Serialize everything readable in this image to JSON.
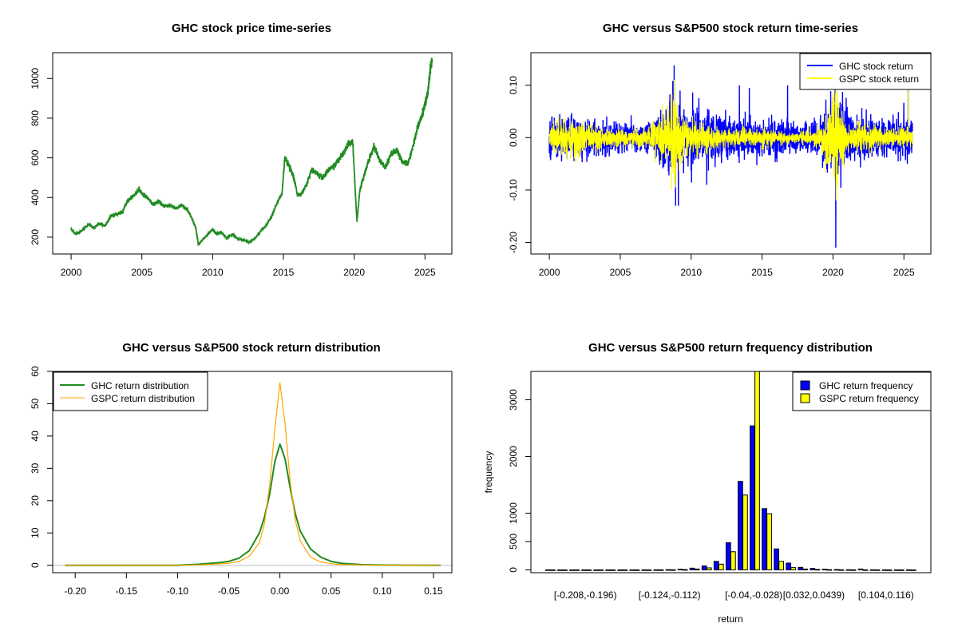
{
  "colors": {
    "ghc_price": "#228B22",
    "ghc_return": "#0000FF",
    "gspc_return": "#FFFF00",
    "ghc_density": "#228B22",
    "gspc_density": "#FFA500",
    "zero_line": "#BEBEBE",
    "axis": "#000000"
  },
  "chart_data": [
    {
      "id": "price",
      "type": "line",
      "title": "GHC stock price time-series",
      "xlabel": "",
      "ylabel": "",
      "xlim": [
        1998.7,
        2026.9
      ],
      "ylim": [
        115,
        1130
      ],
      "xticks": [
        2000,
        2005,
        2010,
        2015,
        2020,
        2025
      ],
      "xtick_labels": [
        "2000",
        "2005",
        "2010",
        "2015",
        "2020",
        "2025"
      ],
      "yticks": [
        200,
        400,
        600,
        800,
        1000
      ],
      "ytick_labels": [
        "200",
        "400",
        "600",
        "800",
        "1000"
      ],
      "series": [
        {
          "name": "GHC price",
          "x": [
            2000.0,
            2000.3,
            2000.6,
            2001.0,
            2001.3,
            2001.6,
            2002.0,
            2002.4,
            2002.8,
            2003.2,
            2003.6,
            2004.0,
            2004.4,
            2004.8,
            2005.0,
            2005.4,
            2005.8,
            2006.2,
            2006.6,
            2007.0,
            2007.4,
            2007.8,
            2008.2,
            2008.5,
            2008.8,
            2009.0,
            2009.2,
            2009.6,
            2010.0,
            2010.3,
            2010.6,
            2011.0,
            2011.4,
            2011.8,
            2012.2,
            2012.6,
            2013.0,
            2013.4,
            2013.8,
            2014.2,
            2014.6,
            2014.9,
            2015.1,
            2015.4,
            2015.7,
            2016.0,
            2016.3,
            2016.6,
            2017.0,
            2017.4,
            2017.8,
            2018.2,
            2018.6,
            2019.0,
            2019.3,
            2019.6,
            2019.9,
            2020.1,
            2020.2,
            2020.4,
            2020.7,
            2021.0,
            2021.4,
            2021.8,
            2022.2,
            2022.6,
            2023.0,
            2023.4,
            2023.8,
            2024.2,
            2024.5,
            2024.8,
            2025.0,
            2025.2,
            2025.4,
            2025.5
          ],
          "values": [
            240,
            215,
            225,
            250,
            265,
            245,
            270,
            255,
            305,
            315,
            325,
            385,
            410,
            440,
            420,
            400,
            365,
            380,
            355,
            360,
            345,
            360,
            340,
            300,
            250,
            160,
            180,
            210,
            240,
            215,
            225,
            195,
            215,
            190,
            185,
            175,
            195,
            230,
            260,
            310,
            380,
            420,
            600,
            560,
            510,
            410,
            420,
            460,
            540,
            520,
            500,
            540,
            560,
            600,
            630,
            670,
            680,
            400,
            280,
            440,
            510,
            580,
            660,
            590,
            550,
            620,
            640,
            580,
            570,
            670,
            760,
            810,
            870,
            930,
            1060,
            1100
          ]
        }
      ]
    },
    {
      "id": "returns",
      "type": "line",
      "title": "GHC versus S&P500 stock return time-series",
      "xlabel": "",
      "ylabel": "",
      "xlim": [
        1998.7,
        2026.9
      ],
      "ylim": [
        -0.222,
        0.162
      ],
      "xticks": [
        2000,
        2005,
        2010,
        2015,
        2020,
        2025
      ],
      "xtick_labels": [
        "2000",
        "2005",
        "2010",
        "2015",
        "2020",
        "2025"
      ],
      "yticks": [
        -0.2,
        -0.1,
        0.0,
        0.1
      ],
      "ytick_labels": [
        "-0.20",
        "-0.10",
        "0.00",
        "0.10"
      ],
      "legend": {
        "position": "top-right",
        "entries": [
          "GHC stock return",
          "GSPC stock return"
        ]
      },
      "series": [
        {
          "name": "GHC stock return",
          "volatility": [
            [
              2000,
              0.022
            ],
            [
              2002,
              0.02
            ],
            [
              2004,
              0.016
            ],
            [
              2007,
              0.014
            ],
            [
              2008.7,
              0.04
            ],
            [
              2009.5,
              0.03
            ],
            [
              2011,
              0.025
            ],
            [
              2013,
              0.022
            ],
            [
              2015,
              0.02
            ],
            [
              2017,
              0.016
            ],
            [
              2019,
              0.015
            ],
            [
              2020.2,
              0.05
            ],
            [
              2021,
              0.025
            ],
            [
              2023,
              0.018
            ],
            [
              2025.6,
              0.022
            ]
          ],
          "spikes": [
            [
              2008.8,
              0.138
            ],
            [
              2008.9,
              -0.13
            ],
            [
              2009.1,
              -0.13
            ],
            [
              2011.1,
              -0.09
            ],
            [
              2013.4,
              0.1
            ],
            [
              2014.1,
              0.095
            ],
            [
              2020.2,
              -0.21
            ],
            [
              2020.15,
              0.095
            ],
            [
              2016.8,
              0.1
            ],
            [
              2025.3,
              0.11
            ]
          ]
        },
        {
          "name": "GSPC stock return",
          "volatility": [
            [
              2000,
              0.015
            ],
            [
              2002,
              0.017
            ],
            [
              2004,
              0.009
            ],
            [
              2007,
              0.01
            ],
            [
              2008.8,
              0.04
            ],
            [
              2009.5,
              0.02
            ],
            [
              2011,
              0.013
            ],
            [
              2013,
              0.008
            ],
            [
              2015,
              0.01
            ],
            [
              2017,
              0.005
            ],
            [
              2019,
              0.009
            ],
            [
              2020.2,
              0.05
            ],
            [
              2021,
              0.012
            ],
            [
              2022,
              0.016
            ],
            [
              2024,
              0.009
            ],
            [
              2025.6,
              0.012
            ]
          ],
          "spikes": [
            [
              2008.8,
              0.11
            ],
            [
              2008.9,
              -0.095
            ],
            [
              2020.2,
              0.09
            ],
            [
              2020.22,
              -0.12
            ],
            [
              2025.3,
              0.095
            ]
          ]
        }
      ]
    },
    {
      "id": "density",
      "type": "line",
      "title": "GHC versus S&P500 stock return distribution",
      "xlabel": "",
      "ylabel": "",
      "xlim": [
        -0.222,
        0.168
      ],
      "ylim": [
        -2.3,
        60
      ],
      "xticks": [
        -0.2,
        -0.15,
        -0.1,
        -0.05,
        0.0,
        0.05,
        0.1,
        0.15
      ],
      "xtick_labels": [
        "-0.20",
        "-0.15",
        "-0.10",
        "-0.05",
        "0.00",
        "0.05",
        "0.10",
        "0.15"
      ],
      "yticks": [
        0,
        10,
        20,
        30,
        40,
        50,
        60
      ],
      "ytick_labels": [
        "0",
        "10",
        "20",
        "30",
        "40",
        "50",
        "60"
      ],
      "legend": {
        "position": "top-left",
        "entries": [
          "GHC return distribution",
          "GSPC return distribution"
        ]
      },
      "series": [
        {
          "name": "GHC return distribution",
          "x": [
            -0.21,
            -0.1,
            -0.08,
            -0.06,
            -0.05,
            -0.04,
            -0.03,
            -0.02,
            -0.015,
            -0.01,
            -0.005,
            0.0,
            0.005,
            0.01,
            0.015,
            0.02,
            0.03,
            0.04,
            0.05,
            0.06,
            0.08,
            0.1,
            0.157
          ],
          "values": [
            0,
            0,
            0.3,
            0.8,
            1.2,
            2.2,
            4.5,
            10,
            15,
            22,
            32,
            37.5,
            33,
            24,
            16,
            10.5,
            5,
            2.5,
            1.2,
            0.6,
            0.2,
            0.05,
            0
          ]
        },
        {
          "name": "GSPC return distribution",
          "x": [
            -0.21,
            -0.1,
            -0.08,
            -0.06,
            -0.05,
            -0.04,
            -0.03,
            -0.02,
            -0.015,
            -0.01,
            -0.005,
            0.0,
            0.005,
            0.01,
            0.015,
            0.02,
            0.03,
            0.04,
            0.05,
            0.06,
            0.08,
            0.1,
            0.157
          ],
          "values": [
            0,
            0,
            0.1,
            0.4,
            0.6,
            1.2,
            2.8,
            7,
            13,
            25,
            42,
            56.5,
            44,
            26,
            14,
            7.5,
            2.5,
            1.0,
            0.5,
            0.2,
            0.1,
            0.02,
            0
          ]
        }
      ]
    },
    {
      "id": "frequency",
      "type": "bar",
      "title": "GHC versus S&P500 return frequency distribution",
      "xlabel": "return",
      "ylabel": "frequency",
      "ylim": [
        -50,
        3500
      ],
      "yticks": [
        0,
        500,
        1000,
        2000,
        3000
      ],
      "ytick_labels": [
        "0",
        "500",
        "1000",
        "2000",
        "3000"
      ],
      "category_labels": [
        "[-0.208,-0.196)",
        "[-0.124,-0.112)",
        "[-0.04,-0.028)",
        "[0.032,0.0439)",
        "[0.104,0.116)"
      ],
      "category_label_index": [
        0,
        7,
        14,
        19,
        25
      ],
      "bin_count": 31,
      "legend": {
        "position": "top-right",
        "entries": [
          "GHC return frequency",
          "GSPC return frequency"
        ]
      },
      "series": [
        {
          "name": "GHC return frequency",
          "values": [
            1,
            0,
            0,
            0,
            0,
            0,
            0,
            1,
            1,
            2,
            4,
            12,
            30,
            70,
            150,
            480,
            1560,
            2540,
            1080,
            370,
            120,
            45,
            25,
            12,
            6,
            3,
            15,
            2,
            1,
            1,
            1
          ]
        },
        {
          "name": "GSPC return frequency",
          "values": [
            0,
            0,
            0,
            0,
            0,
            0,
            0,
            0,
            0,
            1,
            2,
            5,
            15,
            35,
            100,
            320,
            1320,
            3500,
            990,
            150,
            40,
            15,
            8,
            4,
            2,
            1,
            1,
            1,
            0,
            0,
            0
          ]
        }
      ]
    }
  ]
}
